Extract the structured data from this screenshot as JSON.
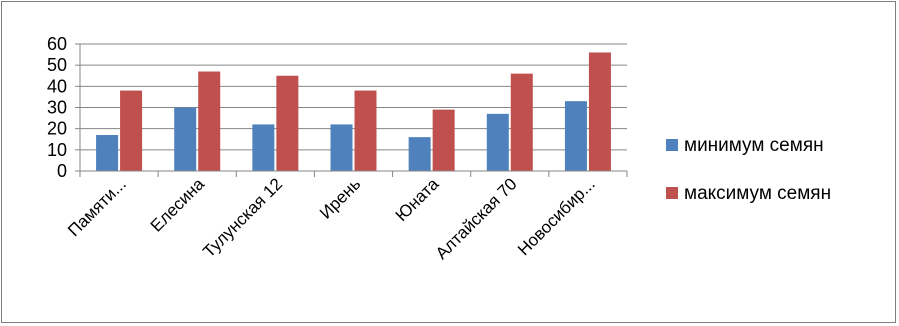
{
  "chart_data": {
    "type": "bar",
    "categories": [
      "Памяти...",
      "Елесина",
      "Тулунская 12",
      "Ирень",
      "Юната",
      "Алтайская 70",
      "Новосибир..."
    ],
    "series": [
      {
        "name": "минимум семян",
        "color": "#4f81bd",
        "values": [
          17,
          30,
          22,
          22,
          16,
          27,
          33
        ]
      },
      {
        "name": "максимум семян",
        "color": "#c0504d",
        "values": [
          38,
          47,
          45,
          38,
          29,
          46,
          56
        ]
      }
    ],
    "ylim": [
      0,
      60
    ],
    "yticks": [
      0,
      10,
      20,
      30,
      40,
      50,
      60
    ],
    "grid": true,
    "legend_position": "right"
  }
}
